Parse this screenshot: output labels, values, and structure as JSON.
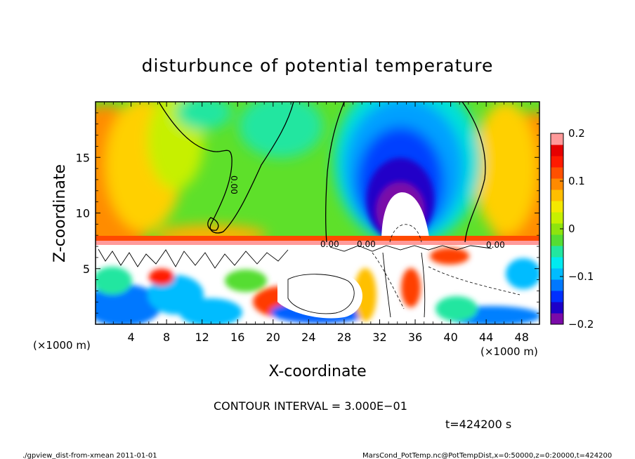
{
  "chart_data": {
    "type": "heatmap",
    "title": "disturbunce of potential temperature",
    "xlabel": "X-coordinate",
    "ylabel": "Z-coordinate",
    "x_unit": "(×1000 m)",
    "y_unit": "(×1000 m)",
    "x_range": [
      0,
      50
    ],
    "y_range": [
      0,
      20
    ],
    "x_ticks": [
      "4",
      "8",
      "12",
      "16",
      "20",
      "24",
      "28",
      "32",
      "36",
      "40",
      "44",
      "48"
    ],
    "y_ticks": [
      "5",
      "10",
      "15"
    ],
    "colorbar": {
      "range": [
        -0.2,
        0.2
      ],
      "tick_labels": [
        "0.2",
        "0.1",
        "0",
        "−0.1",
        "−0.2"
      ],
      "colors": [
        "#7a0aa8",
        "#1d00c8",
        "#0030ff",
        "#0078ff",
        "#00bcff",
        "#00eaf0",
        "#22e6a0",
        "#55dd33",
        "#8ee40e",
        "#c7f000",
        "#f4e800",
        "#ffbe00",
        "#ff8a00",
        "#ff5000",
        "#ff1a00",
        "#e60000",
        "#ff9a9a"
      ]
    },
    "contour_labels": [
      "0.00",
      "0.00",
      "0.00",
      "0.00"
    ],
    "contour_interval_text": "CONTOUR INTERVAL = 3.000E−01",
    "time_text": "t=424200 s",
    "footer_left": "./gpview_dist-from-xmean   2011-01-01",
    "footer_right": "MarsCond_PotTemp.nc@PotTempDist,x=0:50000,z=0:20000,t=424200"
  }
}
